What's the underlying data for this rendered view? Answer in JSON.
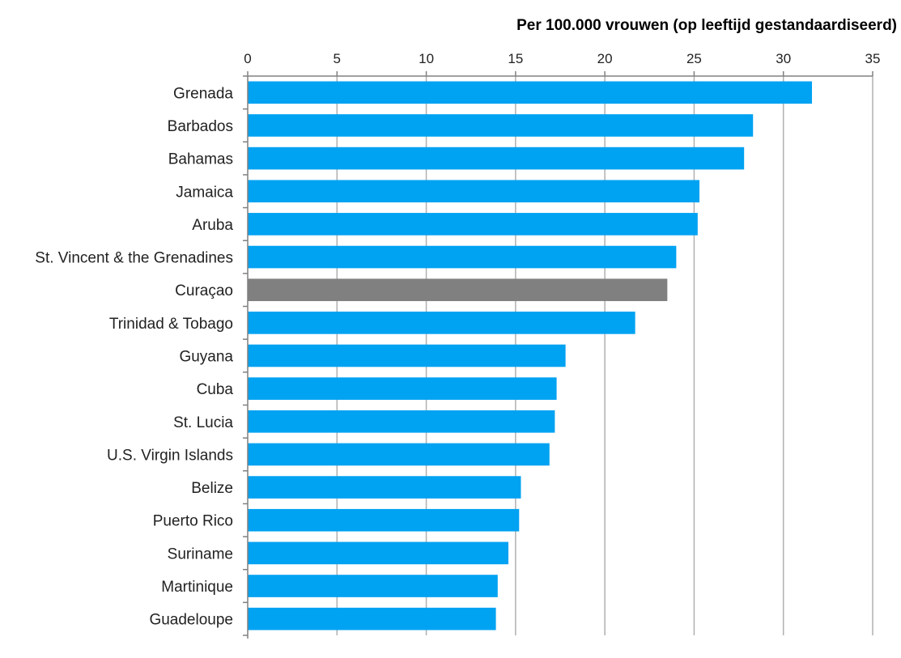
{
  "chart_data": {
    "type": "bar",
    "orientation": "horizontal",
    "title": "",
    "xlabel": "Per 100.000 vrouwen (op leeftijd gestandaardiseerd)",
    "ylabel": "",
    "xlim": [
      0,
      35
    ],
    "xticks": [
      0,
      5,
      10,
      15,
      20,
      25,
      30,
      35
    ],
    "xaxis_position": "top",
    "grid": "vertical",
    "legend": "none",
    "categories": [
      "Grenada",
      "Barbados",
      "Bahamas",
      "Jamaica",
      "Aruba",
      "St. Vincent & the Grenadines",
      "Curaçao",
      "Trinidad & Tobago",
      "Guyana",
      "Cuba",
      "St. Lucia",
      "U.S. Virgin Islands",
      "Belize",
      "Puerto Rico",
      "Suriname",
      "Martinique",
      "Guadeloupe"
    ],
    "values": [
      31.6,
      28.3,
      27.8,
      25.3,
      25.2,
      24.0,
      23.5,
      21.7,
      17.8,
      17.3,
      17.2,
      16.9,
      15.3,
      15.2,
      14.6,
      14.0,
      13.9
    ],
    "colors": {
      "default": "#00a2f2",
      "highlight": "#808080",
      "grid": "#b0b0b0",
      "axis": "#808080"
    },
    "highlight_category": "Curaçao"
  }
}
